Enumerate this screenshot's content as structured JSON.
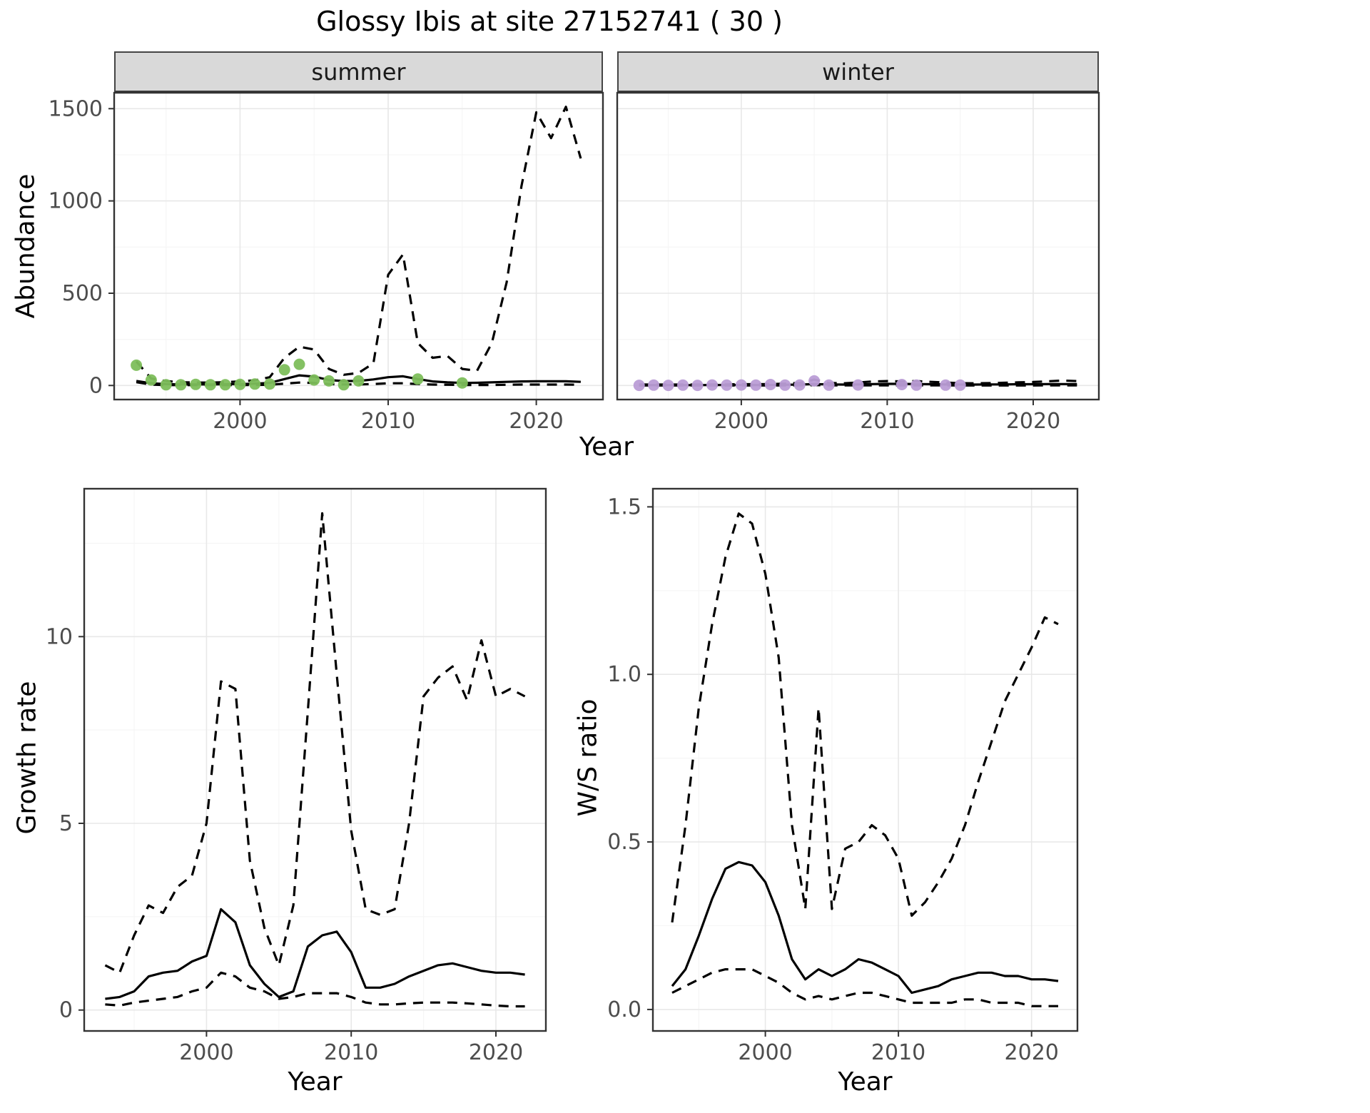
{
  "title": "Glossy Ibis at site 27152741 ( 30 )",
  "colors": {
    "line": "#000000",
    "grid_major": "#E8E8E8",
    "grid_minor": "#F5F5F5",
    "panel_border": "#333333",
    "tick": "#333333",
    "strip_bg": "#D9D9D9",
    "summer_point": "#7DBE5B",
    "winter_point": "#BB9DD6"
  },
  "top": {
    "ylabel": "Abundance",
    "xlabel": "Year",
    "facets": [
      {
        "label": "summer"
      },
      {
        "label": "winter"
      }
    ]
  },
  "bottom_left": {
    "ylabel": "Growth rate",
    "xlabel": "Year"
  },
  "bottom_right": {
    "ylabel": "W/S ratio",
    "xlabel": "Year"
  },
  "chart_data": [
    {
      "key": "abundance_summer",
      "type": "line",
      "facet": "summer",
      "xlim": [
        1991.5,
        2024.5
      ],
      "ylim": [
        -76,
        1586
      ],
      "xticks": {
        "values": [
          2000,
          2010,
          2020
        ],
        "labels": [
          "2000",
          "2010",
          "2020"
        ],
        "minor": [
          1995,
          2005,
          2015
        ]
      },
      "yticks": {
        "values": [
          0,
          500,
          1000,
          1500
        ],
        "labels": [
          "0",
          "500",
          "1000",
          "1500"
        ],
        "minor": [
          250,
          750,
          1250
        ]
      },
      "years": [
        1993,
        1994,
        1995,
        1996,
        1997,
        1998,
        1999,
        2000,
        2001,
        2002,
        2003,
        2004,
        2005,
        2006,
        2007,
        2008,
        2009,
        2010,
        2011,
        2012,
        2013,
        2014,
        2015,
        2016,
        2017,
        2018,
        2019,
        2020,
        2021,
        2022,
        2023
      ],
      "series": [
        {
          "name": "fit",
          "line": "solid",
          "values": [
            25,
            12,
            8,
            6,
            6,
            6,
            7,
            8,
            10,
            14,
            35,
            55,
            48,
            30,
            24,
            25,
            33,
            45,
            50,
            35,
            22,
            17,
            14,
            15,
            17,
            20,
            22,
            23,
            23,
            23,
            20
          ]
        },
        {
          "name": "upper_ci",
          "line": "dashed",
          "values": [
            130,
            38,
            24,
            18,
            16,
            16,
            18,
            22,
            28,
            45,
            150,
            210,
            195,
            90,
            58,
            68,
            120,
            600,
            710,
            230,
            150,
            160,
            90,
            80,
            230,
            560,
            1080,
            1480,
            1340,
            1510,
            1230
          ]
        },
        {
          "name": "lower_ci",
          "line": "dashed",
          "values": [
            18,
            5,
            2,
            2,
            2,
            2,
            2,
            2,
            3,
            4,
            10,
            16,
            14,
            8,
            6,
            6,
            8,
            12,
            12,
            8,
            5,
            4,
            3,
            3,
            3,
            4,
            5,
            5,
            5,
            5,
            4
          ]
        }
      ],
      "points": {
        "name": "observed_counts",
        "color": "#7DBE5B",
        "x": [
          1993,
          1994,
          1995,
          1996,
          1997,
          1998,
          1999,
          2000,
          2001,
          2002,
          2003,
          2004,
          2005,
          2006,
          2007,
          2008,
          2012,
          2015
        ],
        "y": [
          110,
          30,
          4,
          4,
          6,
          4,
          4,
          6,
          8,
          8,
          85,
          115,
          30,
          25,
          4,
          25,
          35,
          14
        ]
      }
    },
    {
      "key": "abundance_winter",
      "type": "line",
      "facet": "winter",
      "xlim": [
        1991.5,
        2024.5
      ],
      "ylim": [
        -76,
        1586
      ],
      "xticks": {
        "values": [
          2000,
          2010,
          2020
        ],
        "labels": [
          "2000",
          "2010",
          "2020"
        ],
        "minor": [
          1995,
          2005,
          2015
        ]
      },
      "yticks": {
        "values": [
          0,
          500,
          1000,
          1500
        ],
        "labels": [
          "0",
          "500",
          "1000",
          "1500"
        ],
        "minor": [
          250,
          750,
          1250
        ]
      },
      "years": [
        1993,
        1994,
        1995,
        1996,
        1997,
        1998,
        1999,
        2000,
        2001,
        2002,
        2003,
        2004,
        2005,
        2006,
        2007,
        2008,
        2009,
        2010,
        2011,
        2012,
        2013,
        2014,
        2015,
        2016,
        2017,
        2018,
        2019,
        2020,
        2021,
        2022,
        2023
      ],
      "series": [
        {
          "name": "fit",
          "line": "solid",
          "values": [
            2,
            2,
            2,
            2,
            2,
            3,
            3,
            3,
            3,
            3,
            4,
            5,
            8,
            6,
            5,
            6,
            8,
            9,
            9,
            8,
            7,
            6,
            5,
            5,
            6,
            6,
            7,
            7,
            8,
            8,
            8
          ]
        },
        {
          "name": "upper_ci",
          "line": "dashed",
          "values": [
            6,
            5,
            5,
            5,
            5,
            6,
            6,
            7,
            7,
            8,
            10,
            14,
            32,
            14,
            12,
            16,
            22,
            24,
            22,
            24,
            20,
            16,
            13,
            12,
            13,
            15,
            17,
            19,
            23,
            27,
            24
          ]
        },
        {
          "name": "lower_ci",
          "line": "dashed",
          "values": [
            0,
            0,
            0,
            0,
            0,
            0,
            0,
            0,
            0,
            0,
            1,
            1,
            2,
            1,
            1,
            1,
            1,
            1,
            1,
            1,
            1,
            1,
            0,
            0,
            0,
            0,
            0,
            0,
            1,
            1,
            1
          ]
        }
      ],
      "points": {
        "name": "observed_counts",
        "color": "#BB9DD6",
        "x": [
          1993,
          1994,
          1995,
          1996,
          1997,
          1998,
          1999,
          2000,
          2001,
          2002,
          2003,
          2004,
          2005,
          2006,
          2008,
          2011,
          2012,
          2014,
          2015
        ],
        "y": [
          1,
          2,
          1,
          2,
          1,
          3,
          2,
          3,
          2,
          5,
          2,
          3,
          25,
          2,
          3,
          5,
          2,
          2,
          2
        ]
      }
    },
    {
      "key": "growth_rate",
      "type": "line",
      "xlim": [
        1991.55,
        2023.45
      ],
      "ylim": [
        -0.56,
        13.96
      ],
      "xticks": {
        "values": [
          2000,
          2010,
          2020
        ],
        "labels": [
          "2000",
          "2010",
          "2020"
        ],
        "minor": [
          1995,
          2005,
          2015
        ]
      },
      "yticks": {
        "values": [
          0,
          5,
          10
        ],
        "labels": [
          "0",
          "5",
          "10"
        ],
        "minor": [
          2.5,
          7.5,
          12.5
        ]
      },
      "years": [
        1993,
        1994,
        1995,
        1996,
        1997,
        1998,
        1999,
        2000,
        2001,
        2002,
        2003,
        2004,
        2005,
        2006,
        2007,
        2008,
        2009,
        2010,
        2011,
        2012,
        2013,
        2014,
        2015,
        2016,
        2017,
        2018,
        2019,
        2020,
        2021,
        2022
      ],
      "series": [
        {
          "name": "fit",
          "line": "solid",
          "values": [
            0.3,
            0.35,
            0.5,
            0.9,
            1.0,
            1.05,
            1.3,
            1.45,
            2.7,
            2.35,
            1.2,
            0.7,
            0.35,
            0.5,
            1.7,
            2.0,
            2.1,
            1.55,
            0.6,
            0.6,
            0.7,
            0.9,
            1.05,
            1.2,
            1.25,
            1.15,
            1.05,
            1.0,
            1.0,
            0.95
          ]
        },
        {
          "name": "upper_ci",
          "line": "dashed",
          "values": [
            1.2,
            1.0,
            2.0,
            2.8,
            2.6,
            3.3,
            3.6,
            5.0,
            8.8,
            8.6,
            4.0,
            2.2,
            1.2,
            2.8,
            8.0,
            13.3,
            9.0,
            4.8,
            2.7,
            2.55,
            2.7,
            5.0,
            8.4,
            8.9,
            9.2,
            8.3,
            9.9,
            8.4,
            8.6,
            8.4
          ]
        },
        {
          "name": "lower_ci",
          "line": "dashed",
          "values": [
            0.15,
            0.12,
            0.2,
            0.25,
            0.3,
            0.35,
            0.5,
            0.6,
            1.0,
            0.9,
            0.6,
            0.5,
            0.3,
            0.35,
            0.45,
            0.45,
            0.45,
            0.35,
            0.2,
            0.15,
            0.15,
            0.18,
            0.2,
            0.2,
            0.2,
            0.18,
            0.15,
            0.12,
            0.1,
            0.1
          ]
        }
      ],
      "points": null
    },
    {
      "key": "ws_ratio",
      "type": "line",
      "xlim": [
        1991.55,
        2023.45
      ],
      "ylim": [
        -0.064,
        1.554
      ],
      "xticks": {
        "values": [
          2000,
          2010,
          2020
        ],
        "labels": [
          "2000",
          "2010",
          "2020"
        ],
        "minor": [
          1995,
          2005,
          2015
        ]
      },
      "yticks": {
        "values": [
          0,
          0.5,
          1.0,
          1.5
        ],
        "labels": [
          "0.0",
          "0.5",
          "1.0",
          "1.5"
        ],
        "minor": [
          0.25,
          0.75,
          1.25
        ]
      },
      "years": [
        1993,
        1994,
        1995,
        1996,
        1997,
        1998,
        1999,
        2000,
        2001,
        2002,
        2003,
        2004,
        2005,
        2006,
        2007,
        2008,
        2009,
        2010,
        2011,
        2012,
        2013,
        2014,
        2015,
        2016,
        2017,
        2018,
        2019,
        2020,
        2021,
        2022
      ],
      "series": [
        {
          "name": "fit",
          "line": "solid",
          "values": [
            0.07,
            0.12,
            0.22,
            0.33,
            0.42,
            0.44,
            0.43,
            0.38,
            0.28,
            0.15,
            0.09,
            0.12,
            0.1,
            0.12,
            0.15,
            0.14,
            0.12,
            0.1,
            0.05,
            0.06,
            0.07,
            0.09,
            0.1,
            0.11,
            0.11,
            0.1,
            0.1,
            0.09,
            0.09,
            0.085
          ]
        },
        {
          "name": "upper_ci",
          "line": "dashed",
          "values": [
            0.26,
            0.55,
            0.9,
            1.15,
            1.35,
            1.48,
            1.45,
            1.3,
            1.05,
            0.55,
            0.3,
            0.9,
            0.3,
            0.48,
            0.5,
            0.55,
            0.52,
            0.45,
            0.28,
            0.32,
            0.38,
            0.45,
            0.55,
            0.68,
            0.8,
            0.92,
            1.0,
            1.08,
            1.17,
            1.15
          ]
        },
        {
          "name": "lower_ci",
          "line": "dashed",
          "values": [
            0.05,
            0.07,
            0.09,
            0.11,
            0.12,
            0.12,
            0.12,
            0.1,
            0.08,
            0.05,
            0.03,
            0.04,
            0.03,
            0.04,
            0.05,
            0.05,
            0.04,
            0.03,
            0.02,
            0.02,
            0.02,
            0.02,
            0.03,
            0.03,
            0.02,
            0.02,
            0.02,
            0.01,
            0.01,
            0.01
          ]
        }
      ],
      "points": null
    }
  ]
}
